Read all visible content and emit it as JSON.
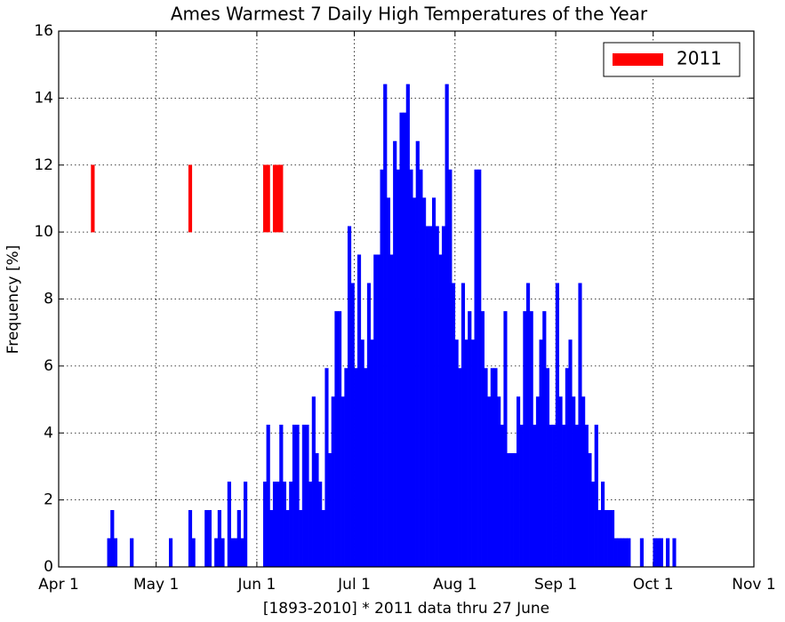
{
  "chart_data": {
    "type": "bar",
    "title": "Ames Warmest 7 Daily High Temperatures of the Year",
    "xlabel": "[1893-2010] * 2011 data thru 27 June",
    "ylabel": "Frequency [%]",
    "xlim": [
      0,
      214
    ],
    "xticks": [
      {
        "value": 0,
        "label": "Apr 1"
      },
      {
        "value": 30,
        "label": "May 1"
      },
      {
        "value": 61,
        "label": "Jun 1"
      },
      {
        "value": 91,
        "label": "Jul 1"
      },
      {
        "value": 122,
        "label": "Aug 1"
      },
      {
        "value": 153,
        "label": "Sep 1"
      },
      {
        "value": 183,
        "label": "Oct 1"
      },
      {
        "value": 214,
        "label": "Nov 1"
      }
    ],
    "ylim": [
      0,
      16
    ],
    "yticks": [
      0,
      2,
      4,
      6,
      8,
      10,
      12,
      14,
      16
    ],
    "grid": true,
    "legend": "upper right",
    "series": [
      {
        "color": "#0000ff",
        "x": [
          15,
          16,
          17,
          22,
          34,
          40,
          41,
          45,
          46,
          48,
          49,
          50,
          52,
          53,
          54,
          55,
          56,
          57,
          63,
          64,
          65,
          66,
          67,
          68,
          69,
          70,
          71,
          72,
          73,
          74,
          75,
          76,
          77,
          78,
          79,
          80,
          81,
          82,
          83,
          84,
          85,
          86,
          87,
          88,
          89,
          90,
          91,
          92,
          93,
          94,
          95,
          96,
          97,
          98,
          99,
          100,
          101,
          102,
          103,
          104,
          105,
          106,
          107,
          108,
          109,
          110,
          111,
          112,
          113,
          114,
          115,
          116,
          117,
          118,
          119,
          120,
          121,
          122,
          123,
          124,
          125,
          126,
          127,
          128,
          129,
          130,
          131,
          132,
          133,
          134,
          135,
          136,
          137,
          138,
          139,
          140,
          141,
          142,
          143,
          144,
          145,
          146,
          147,
          148,
          149,
          150,
          151,
          152,
          153,
          154,
          155,
          156,
          157,
          158,
          159,
          160,
          161,
          162,
          163,
          164,
          165,
          166,
          167,
          168,
          169,
          170,
          171,
          172,
          173,
          174,
          175,
          179,
          183,
          184,
          185,
          187,
          189
        ],
        "values": [
          0.85,
          1.69,
          0.85,
          0.85,
          0.85,
          1.69,
          0.85,
          1.69,
          1.69,
          0.85,
          1.69,
          0.85,
          2.54,
          0.85,
          0.85,
          1.69,
          0.85,
          2.54,
          2.54,
          4.24,
          1.69,
          2.54,
          2.54,
          4.24,
          2.54,
          1.69,
          2.54,
          4.24,
          4.24,
          1.69,
          4.24,
          4.24,
          2.54,
          5.08,
          3.39,
          2.54,
          1.69,
          5.93,
          3.39,
          5.08,
          7.63,
          7.63,
          5.08,
          5.93,
          10.17,
          8.47,
          5.93,
          9.32,
          6.78,
          5.93,
          8.47,
          6.78,
          9.32,
          9.32,
          11.86,
          14.41,
          11.02,
          9.32,
          12.71,
          11.86,
          13.56,
          13.56,
          14.41,
          11.86,
          11.02,
          12.71,
          11.86,
          11.02,
          10.17,
          10.17,
          11.02,
          10.17,
          9.32,
          10.17,
          14.41,
          11.86,
          8.47,
          6.78,
          5.93,
          8.47,
          6.78,
          7.63,
          6.78,
          11.86,
          11.86,
          7.63,
          5.93,
          5.08,
          5.93,
          5.93,
          5.08,
          4.24,
          7.63,
          3.39,
          3.39,
          3.39,
          5.08,
          4.24,
          7.63,
          8.47,
          7.63,
          4.24,
          5.08,
          6.78,
          7.63,
          5.93,
          4.24,
          4.24,
          8.47,
          5.08,
          4.24,
          5.93,
          6.78,
          5.08,
          4.24,
          8.47,
          5.08,
          4.24,
          3.39,
          2.54,
          4.24,
          1.69,
          2.54,
          1.69,
          1.69,
          1.69,
          0.85,
          0.85,
          0.85,
          0.85,
          0.85,
          0.85,
          0.85,
          0.85,
          0.85,
          0.85,
          0.85
        ]
      },
      {
        "name": "2011",
        "color": "#ff0000",
        "bottom": 10,
        "x": [
          10,
          40,
          63,
          64,
          66,
          67,
          68
        ],
        "values": [
          12,
          12,
          12,
          12,
          12,
          12,
          12
        ]
      }
    ]
  }
}
